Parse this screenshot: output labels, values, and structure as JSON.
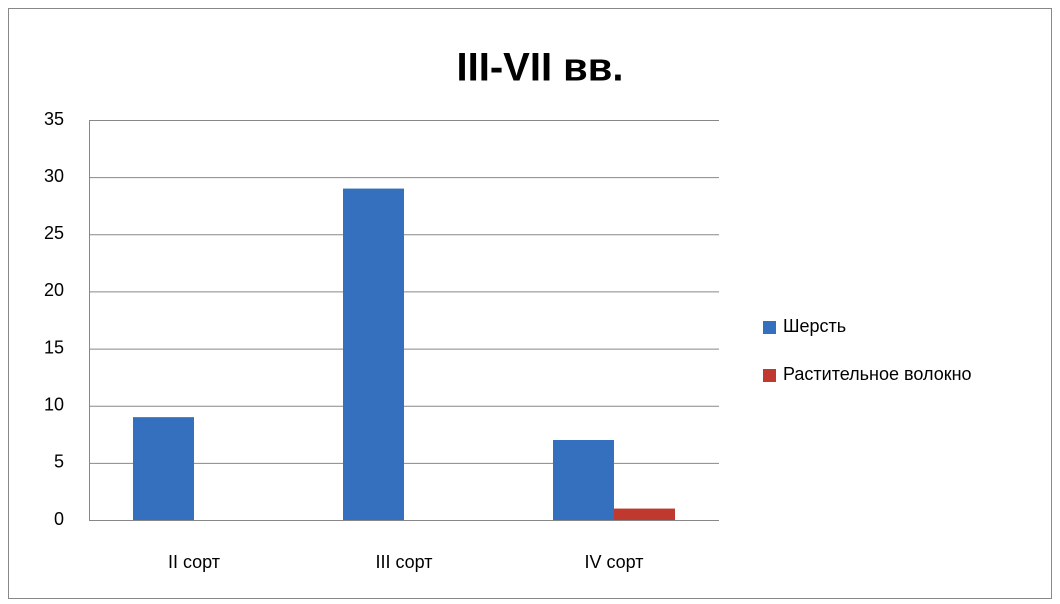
{
  "chart_data": {
    "type": "bar",
    "title": "III-VII вв.",
    "categories": [
      "II сорт",
      "III сорт",
      "IV сорт"
    ],
    "series": [
      {
        "name": "Шерсть",
        "color": "#3470bd",
        "values": [
          9,
          29,
          7
        ]
      },
      {
        "name": "Растительное волокно",
        "color": "#c0392f",
        "values": [
          0,
          0,
          1
        ]
      }
    ],
    "ylim": [
      0,
      35
    ],
    "yticks": [
      0,
      5,
      10,
      15,
      20,
      25,
      30,
      35
    ],
    "grid": true,
    "legend": "right"
  }
}
